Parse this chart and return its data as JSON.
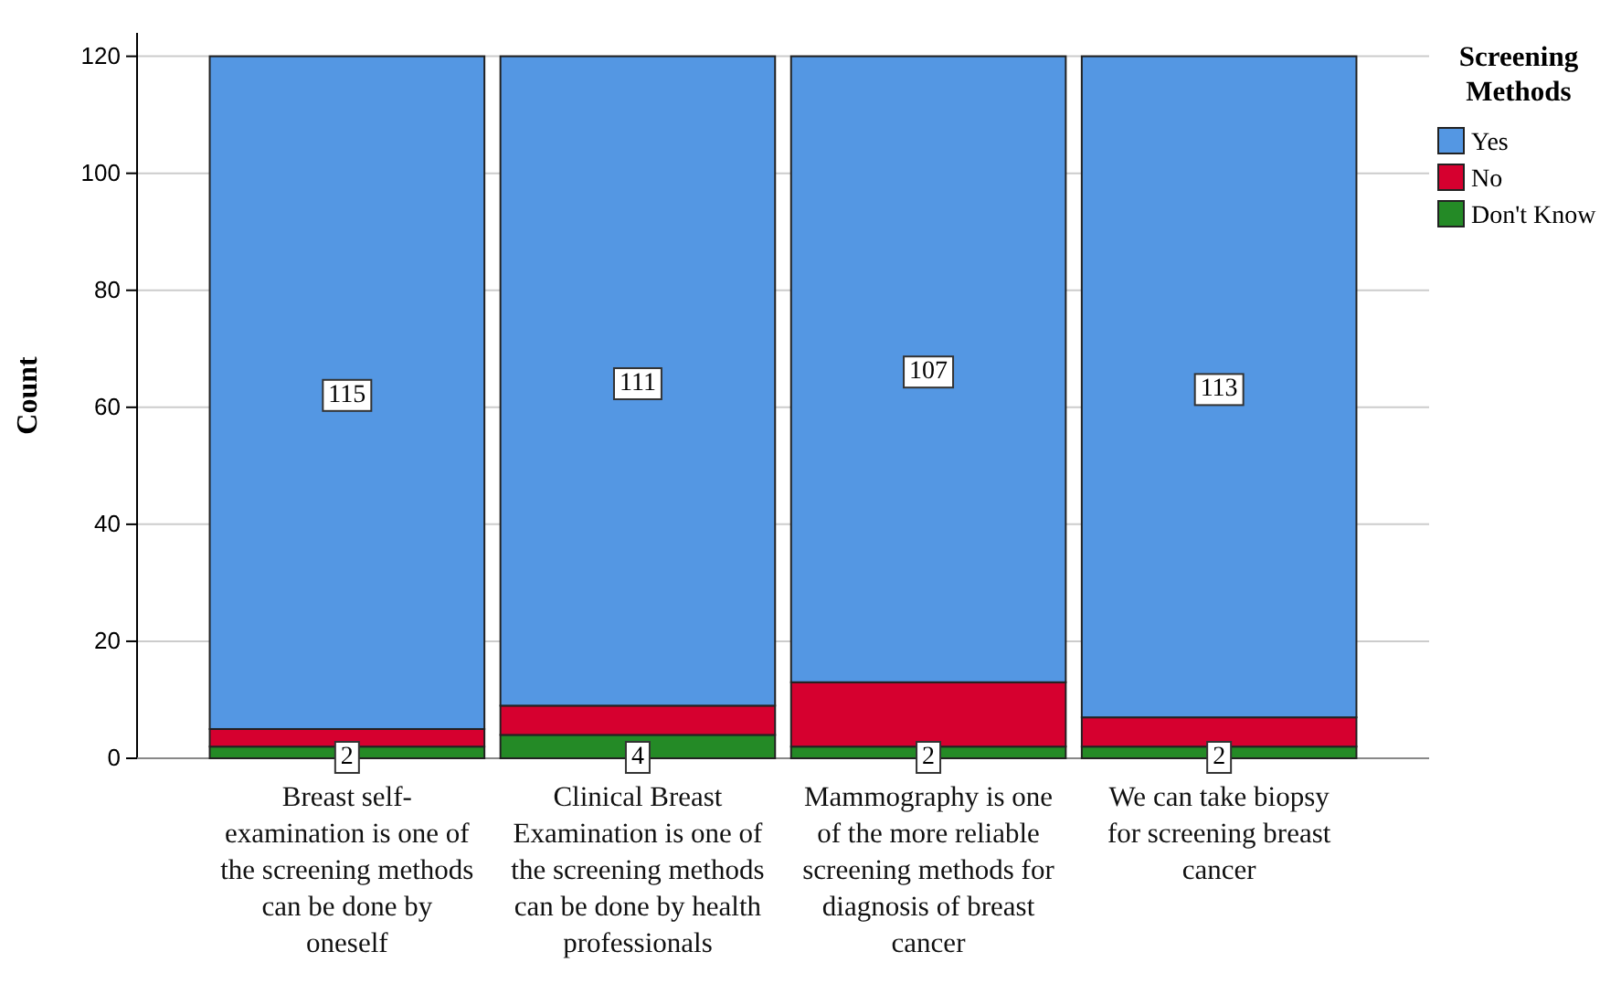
{
  "chart_data": {
    "type": "bar",
    "stacked": true,
    "ylabel": "Count",
    "legend_title": "Screening Methods",
    "legend": "top right",
    "categories": [
      "Breast self-examination is one of the screening methods can be done by oneself",
      "Clinical Breast Examination is one of the screening methods can be done by health professionals",
      "Mammography is one of the more reliable screening methods for diagnosis of breast cancer",
      "We can take biopsy for screening breast cancer"
    ],
    "series": [
      {
        "name": "Don't Know",
        "color": "#248a26",
        "values": [
          2,
          4,
          2,
          2
        ],
        "value_labels": [
          "2",
          "4",
          "2",
          "2"
        ]
      },
      {
        "name": "No",
        "color": "#d6002f",
        "values": [
          3,
          5,
          11,
          5
        ]
      },
      {
        "name": "Yes",
        "color": "#5497e3",
        "values": [
          115,
          111,
          107,
          113
        ],
        "value_labels": [
          "115",
          "111",
          "107",
          "113"
        ]
      }
    ],
    "ylim": [
      0,
      124
    ],
    "yticks": [
      0,
      20,
      40,
      60,
      80,
      100,
      120
    ],
    "grid": "y"
  }
}
